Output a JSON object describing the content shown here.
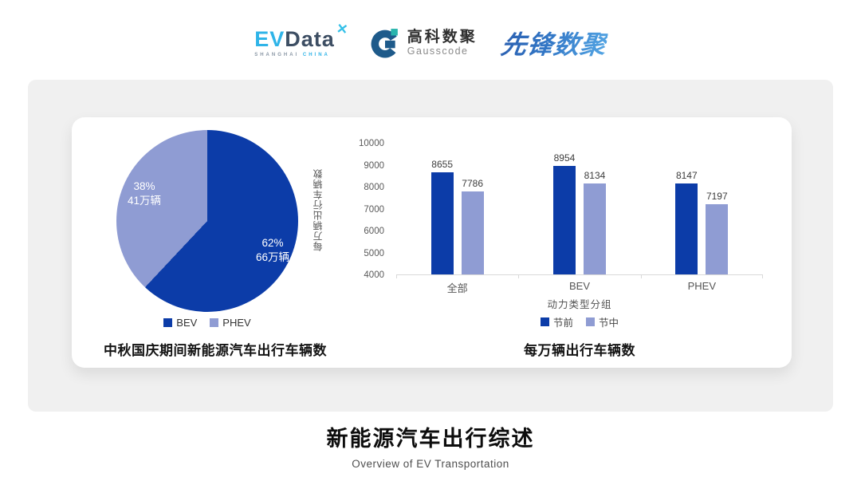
{
  "header": {
    "evdata": {
      "ev": "EV",
      "data": "Data",
      "x_mark": "✕",
      "sub_left": "SHANGHAI",
      "sub_right": "CHINA"
    },
    "gausscode": {
      "cn": "高科数聚",
      "en": "Gausscode"
    },
    "xianfeng": {
      "text": "先锋数聚"
    }
  },
  "colors": {
    "primary_dark_blue": "#0c3ca8",
    "secondary_light_blue": "#8f9cd3",
    "panel_gray": "#f0f0f0",
    "evdata_blue": "#2fb4e8",
    "gauss_dark_blue": "#1e5a8a",
    "gauss_teal": "#2ab5ad"
  },
  "chart_data": [
    {
      "type": "pie",
      "title": "中秋国庆期间新能源汽车出行车辆数",
      "legend_position": "bottom",
      "slices": [
        {
          "label": "BEV",
          "value": 62,
          "pct_label": "62%",
          "amount_label": "66万辆",
          "color": "#0c3ca8"
        },
        {
          "label": "PHEV",
          "value": 38,
          "pct_label": "38%",
          "amount_label": "41万辆",
          "color": "#8f9cd3"
        }
      ]
    },
    {
      "type": "bar",
      "title": "每万辆出行车辆数",
      "xlabel": "动力类型分组",
      "ylabel": "每万辆出行车辆数",
      "categories": [
        "全部",
        "BEV",
        "PHEV"
      ],
      "series": [
        {
          "name": "节前",
          "values": [
            8655,
            8954,
            8147
          ],
          "color": "#0c3ca8"
        },
        {
          "name": "节中",
          "values": [
            7786,
            8134,
            7197
          ],
          "color": "#8f9cd3"
        }
      ],
      "ylim": [
        4000,
        10000
      ],
      "ytick_step": 1000,
      "grid": false,
      "legend_position": "bottom"
    }
  ],
  "footer": {
    "title": "新能源汽车出行综述",
    "subtitle": "Overview of EV Transportation"
  }
}
